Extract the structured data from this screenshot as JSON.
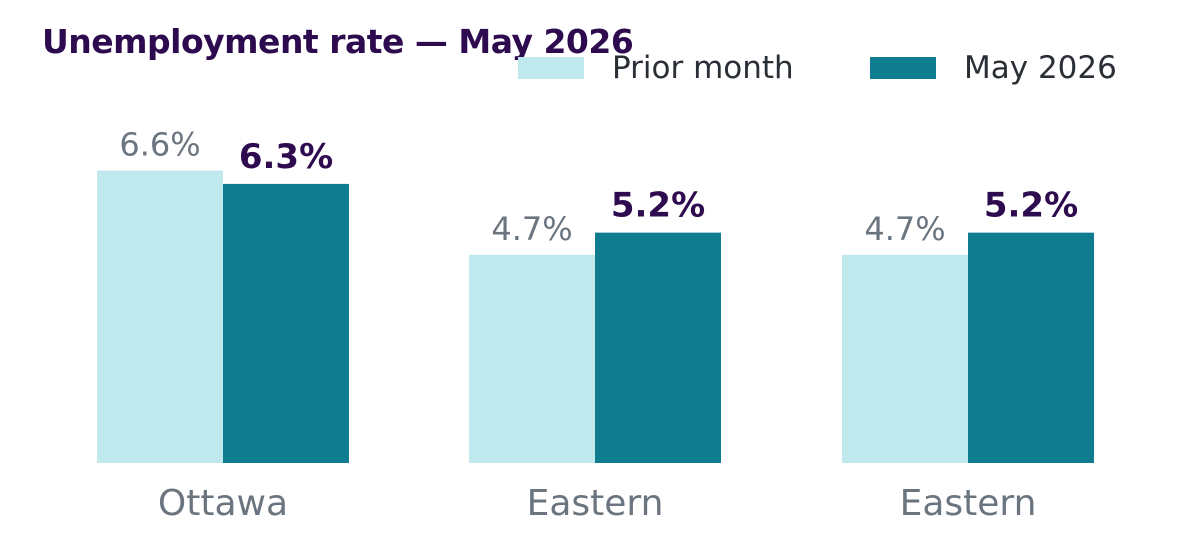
{
  "title": "Unemployment rate — May 2026",
  "colors": {
    "prior": "#bfe9ec",
    "current": "#0f7d8f",
    "title": "#2e0a4f",
    "prior_label": "#6b7580",
    "current_label": "#2e0a4f",
    "category_label": "#6b7580",
    "legend_text": "#2a2f36"
  },
  "legend": {
    "prior_label": "Prior month",
    "current_label": "May 2026"
  },
  "chart_data": {
    "type": "bar",
    "title": "Unemployment rate — May 2026",
    "categories": [
      "Ottawa",
      "Eastern",
      "Eastern"
    ],
    "series": [
      {
        "name": "Prior month",
        "values": [
          6.6,
          4.7,
          4.7
        ],
        "labels": [
          "6.6%",
          "4.7%",
          "4.7%"
        ]
      },
      {
        "name": "May 2026",
        "values": [
          6.3,
          5.2,
          5.2
        ],
        "labels": [
          "6.3%",
          "5.2%",
          "5.2%"
        ]
      }
    ],
    "ylim": [
      0,
      7
    ],
    "xlabel": "",
    "ylabel": "",
    "grid": false,
    "legend_position": "top-right"
  }
}
